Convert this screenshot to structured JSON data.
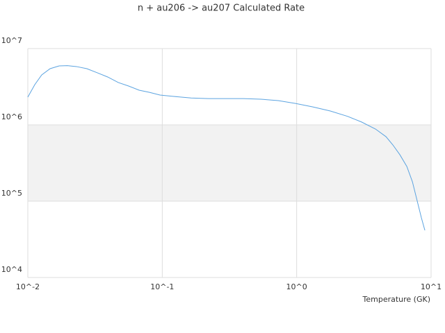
{
  "chart_data": {
    "type": "line",
    "title": "n + au206 -> au207 Calculated Rate",
    "x_label": "Temperature (GK)",
    "x": [
      0.01,
      0.01127,
      0.01269,
      0.01465,
      0.0171,
      0.0197,
      0.023,
      0.0275,
      0.0329,
      0.0393,
      0.0471,
      0.0562,
      0.0673,
      0.0804,
      0.0962,
      0.122,
      0.164,
      0.221,
      0.402,
      0.541,
      0.728,
      0.981,
      1.32,
      1.78,
      2.4,
      3.04,
      3.86,
      4.62,
      5.2,
      5.86,
      6.6,
      7.26,
      7.89,
      8.47,
      8.99
    ],
    "series": [
      {
        "color": "#5ba3e0",
        "values": [
          2310000,
          3370000,
          4520000,
          5450000,
          5930000,
          5970000,
          5810000,
          5450000,
          4810000,
          4240000,
          3590000,
          3230000,
          2850000,
          2670000,
          2460000,
          2360000,
          2250000,
          2210000,
          2210000,
          2170000,
          2080000,
          1910000,
          1720000,
          1520000,
          1290000,
          1090000,
          882000,
          700000,
          545000,
          406000,
          285000,
          180000,
          100000,
          60500,
          41500
        ]
      }
    ],
    "xlim": [
      0.01,
      10
    ],
    "ylim": [
      10000,
      10000000
    ],
    "log_x": true,
    "log_y": true,
    "xticks": [
      {
        "value": 0.01,
        "label": "10^-2"
      },
      {
        "value": 0.1,
        "label": "10^-1"
      },
      {
        "value": 1,
        "label": "10^0"
      },
      {
        "value": 10,
        "label": "10^1"
      }
    ],
    "yticks": [
      {
        "value": 10000,
        "label": "10^4"
      },
      {
        "value": 100000,
        "label": "10^5"
      },
      {
        "value": 1000000,
        "label": "10^6"
      },
      {
        "value": 10000000,
        "label": "10^7"
      }
    ],
    "grid": true,
    "band_color": "#f2f2f2"
  }
}
